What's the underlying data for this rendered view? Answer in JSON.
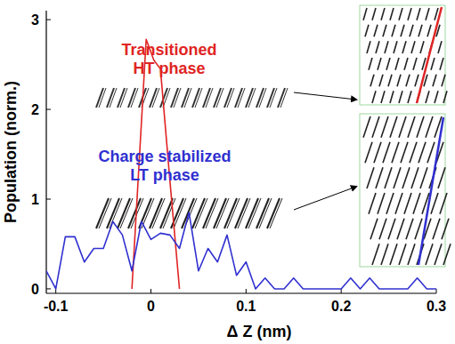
{
  "chart_data": {
    "type": "line",
    "x_label": "Δ Z (nm)",
    "y_label": "Population (norm.)",
    "xlim": [
      -0.11,
      0.3
    ],
    "ylim": [
      -0.05,
      3.1
    ],
    "xticks": [
      -0.1,
      0,
      0.1,
      0.2,
      0.3
    ],
    "yticks": [
      0,
      1,
      2,
      3
    ],
    "grid": false,
    "series": [
      {
        "name": "Transitioned HT phase",
        "color": "#e02424",
        "x": [
          -0.02,
          -0.005,
          0.003,
          0.01,
          0.02,
          0.03
        ],
        "values": [
          0,
          2.78,
          2.55,
          2.45,
          1.2,
          0
        ]
      },
      {
        "name": "Charge stabilized LT phase",
        "color": "#3030d0",
        "x": [
          -0.11,
          -0.1,
          -0.09,
          -0.08,
          -0.07,
          -0.06,
          -0.05,
          -0.04,
          -0.03,
          -0.02,
          -0.01,
          0,
          0.01,
          0.02,
          0.03,
          0.04,
          0.05,
          0.06,
          0.07,
          0.08,
          0.09,
          0.1,
          0.11,
          0.12,
          0.13,
          0.14,
          0.15,
          0.16,
          0.17,
          0.18,
          0.19,
          0.2,
          0.21,
          0.22,
          0.23,
          0.24,
          0.25,
          0.26,
          0.27,
          0.28,
          0.29,
          0.3
        ],
        "values": [
          0.2,
          0,
          0.58,
          0.58,
          0.3,
          0.45,
          0.45,
          0.75,
          0.6,
          0.2,
          0.75,
          0.55,
          0.62,
          0.6,
          0.45,
          0.85,
          0.2,
          0.45,
          0.3,
          0.6,
          0.15,
          0.3,
          0,
          0.12,
          0,
          0,
          0.12,
          0,
          0,
          0,
          0,
          0,
          0.12,
          0,
          0.12,
          0,
          0,
          0,
          0,
          0.12,
          0,
          0
        ]
      }
    ]
  }
}
